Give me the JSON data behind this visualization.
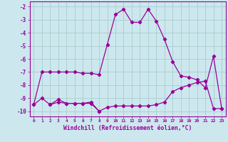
{
  "xlabel": "Windchill (Refroidissement éolien,°C)",
  "bg_color": "#cce8ee",
  "line_color": "#990099",
  "grid_color": "#aacccc",
  "xlim": [
    -0.5,
    23.5
  ],
  "ylim": [
    -10.4,
    -1.6
  ],
  "yticks": [
    -10,
    -9,
    -8,
    -7,
    -6,
    -5,
    -4,
    -3,
    -2
  ],
  "xticks": [
    0,
    1,
    2,
    3,
    4,
    5,
    6,
    7,
    8,
    9,
    10,
    11,
    12,
    13,
    14,
    15,
    16,
    17,
    18,
    19,
    20,
    21,
    22,
    23
  ],
  "series1_x": [
    0,
    1,
    2,
    3,
    4,
    5,
    6,
    7,
    8,
    9,
    10,
    11,
    12,
    13,
    14,
    15,
    16,
    17,
    18,
    19,
    20,
    21,
    22,
    23
  ],
  "series1_y": [
    -9.5,
    -7.0,
    -7.0,
    -7.0,
    -7.0,
    -7.0,
    -7.1,
    -7.1,
    -7.2,
    -4.9,
    -2.6,
    -2.2,
    -3.2,
    -3.2,
    -2.2,
    -3.1,
    -4.5,
    -6.2,
    -7.3,
    -7.4,
    -7.6,
    -8.2,
    -5.8,
    -9.8
  ],
  "series2_x": [
    0,
    1,
    2,
    3,
    4,
    5,
    6,
    7,
    8,
    9,
    10,
    11,
    12,
    13,
    14,
    15,
    16,
    17,
    18,
    19,
    20,
    21,
    22,
    23
  ],
  "series2_y": [
    -9.5,
    -9.0,
    -9.5,
    -9.3,
    -9.4,
    -9.4,
    -9.4,
    -9.4,
    -10.0,
    -9.7,
    -9.6,
    -9.6,
    -9.6,
    -9.6,
    -9.6,
    -9.5,
    -9.3,
    -8.5,
    -8.2,
    -8.0,
    -7.8,
    -7.7,
    -9.8,
    -9.8
  ],
  "series3_x": [
    2,
    3,
    4,
    5,
    6,
    7,
    8
  ],
  "series3_y": [
    -9.5,
    -9.1,
    -9.4,
    -9.4,
    -9.4,
    -9.3,
    -10.0
  ]
}
